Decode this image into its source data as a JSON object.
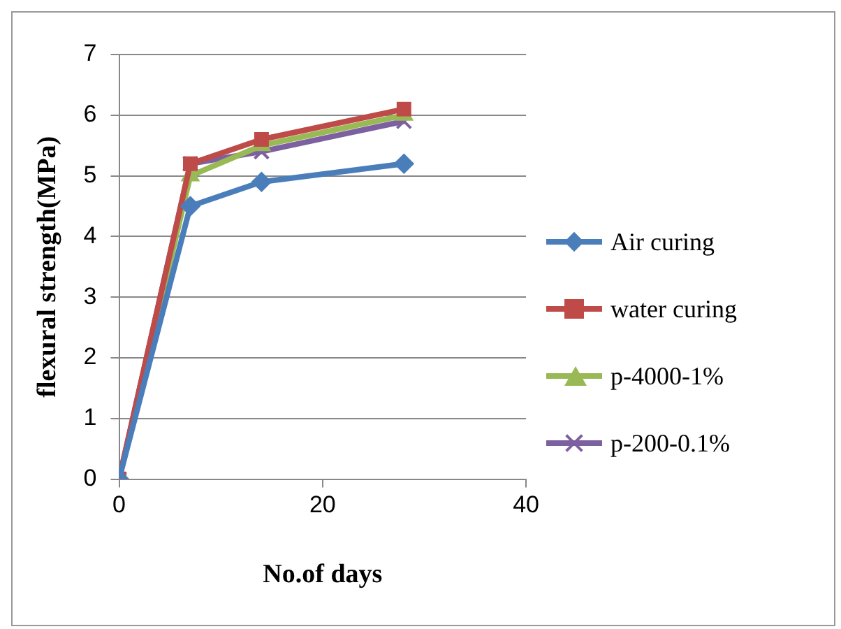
{
  "chart_data": {
    "type": "line",
    "xlabel": "No.of days",
    "ylabel": "flexural strength(MPa)",
    "x": [
      0,
      7,
      14,
      28
    ],
    "series": [
      {
        "name": "Air curing",
        "color": "#4a7ebb",
        "marker": "diamond",
        "values": [
          0,
          4.5,
          4.9,
          5.2
        ]
      },
      {
        "name": "water curing",
        "color": "#be4b48",
        "marker": "square",
        "values": [
          0,
          5.2,
          5.6,
          6.1
        ]
      },
      {
        "name": "p-4000-1%",
        "color": "#98b954",
        "marker": "triangle",
        "values": [
          0,
          5.0,
          5.5,
          6.0
        ]
      },
      {
        "name": "p-200-0.1%",
        "color": "#7d60a0",
        "marker": "cross",
        "values": [
          0,
          5.2,
          5.4,
          5.9
        ]
      }
    ],
    "xlim": [
      0,
      40
    ],
    "xticks": [
      0,
      20,
      40
    ],
    "ylim": [
      0,
      7
    ],
    "yticks": [
      0,
      1,
      2,
      3,
      4,
      5,
      6,
      7
    ],
    "grid": "y",
    "legend": "right"
  }
}
